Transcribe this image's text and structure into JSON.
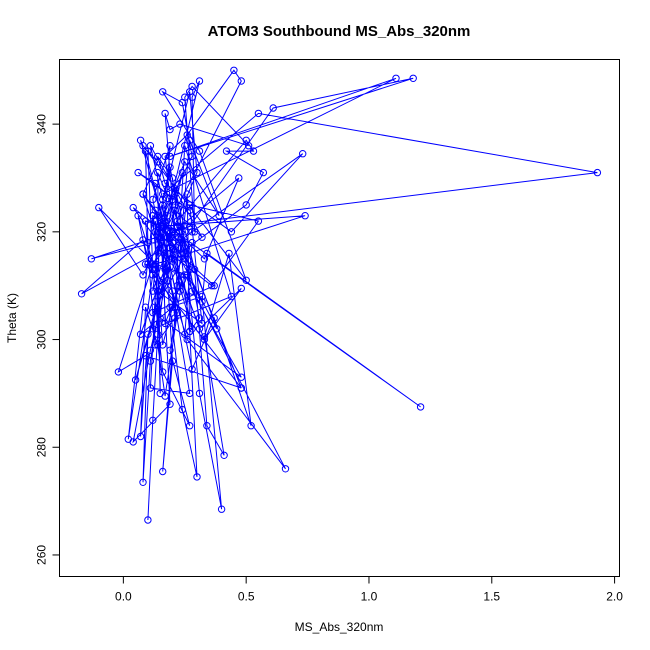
{
  "chart_data": {
    "type": "line",
    "title": "ATOM3 Southbound MS_Abs_320nm",
    "xlabel": "MS_Abs_320nm",
    "ylabel": "Theta (K)",
    "xlim": [
      -0.26,
      2.02
    ],
    "ylim": [
      256,
      352
    ],
    "xticks": [
      0.0,
      0.5,
      1.0,
      1.5,
      2.0
    ],
    "xtick_labels": [
      "0.0",
      "0.5",
      "1.0",
      "1.5",
      "2.0"
    ],
    "yticks": [
      260,
      280,
      300,
      320,
      340
    ],
    "ytick_labels": [
      "260",
      "280",
      "300",
      "320",
      "340"
    ],
    "grid": false,
    "color": "#0000ff",
    "series": [
      {
        "points": [
          [
            0.1,
            266.5
          ],
          [
            0.12,
            285
          ],
          [
            0.14,
            301
          ],
          [
            0.13,
            322
          ],
          [
            0.18,
            311
          ],
          [
            0.2,
            296
          ],
          [
            0.16,
            275.5
          ],
          [
            0.22,
            310
          ],
          [
            0.26,
            327
          ],
          [
            0.27,
            301.5
          ],
          [
            0.3,
            274.5
          ],
          [
            0.24,
            287
          ],
          [
            0.19,
            306
          ],
          [
            0.32,
            308
          ],
          [
            0.4,
            268.5
          ],
          [
            0.31,
            290
          ],
          [
            0.25,
            317
          ],
          [
            0.21,
            328
          ],
          [
            0.29,
            313
          ],
          [
            0.34,
            284
          ],
          [
            0.41,
            278.5
          ],
          [
            0.33,
            300.5
          ],
          [
            0.43,
            316
          ],
          [
            0.52,
            284
          ],
          [
            0.37,
            304
          ],
          [
            0.28,
            294.5
          ],
          [
            0.18,
            316
          ],
          [
            0.11,
            296
          ],
          [
            0.08,
            273.5
          ],
          [
            0.1,
            301
          ],
          [
            0.07,
            282
          ],
          [
            0.09,
            306
          ],
          [
            0.14,
            299
          ],
          [
            0.17,
            289.5
          ],
          [
            0.22,
            305
          ],
          [
            0.13,
            313
          ],
          [
            0.06,
            323
          ],
          [
            0.1,
            314
          ],
          [
            0.2,
            309
          ],
          [
            0.27,
            290
          ],
          [
            0.11,
            291
          ],
          [
            0.13,
            307
          ],
          [
            0.16,
            294
          ],
          [
            0.27,
            284
          ],
          [
            0.19,
            298
          ],
          [
            0.24,
            311
          ],
          [
            0.17,
            303
          ],
          [
            0.16,
            321
          ],
          [
            0.31,
            302
          ],
          [
            0.48,
            309.5
          ],
          [
            0.33,
            300
          ],
          [
            0.2,
            315
          ],
          [
            0.09,
            335
          ],
          [
            0.1,
            318
          ],
          [
            0.12,
            312
          ],
          [
            0.02,
            281.5
          ],
          [
            0.12,
            323
          ],
          [
            0.15,
            316.5
          ],
          [
            -0.17,
            308.5
          ],
          [
            0.08,
            318.5
          ],
          [
            0.14,
            309
          ],
          [
            0.15,
            290
          ],
          [
            0.14,
            331
          ],
          [
            0.23,
            321
          ],
          [
            0.38,
            302
          ],
          [
            0.13,
            324
          ],
          [
            0.19,
            313.5
          ],
          [
            0.11,
            298
          ],
          [
            0.04,
            281
          ],
          [
            0.19,
            288
          ],
          [
            0.15,
            322
          ],
          [
            0.25,
            301
          ],
          [
            0.28,
            318
          ],
          [
            0.12,
            305
          ],
          [
            0.37,
            310
          ],
          [
            0.25,
            315
          ],
          [
            0.18,
            319
          ],
          [
            0.47,
            330
          ],
          [
            0.33,
            315
          ],
          [
            0.17,
            322
          ],
          [
            0.19,
            336
          ],
          [
            0.12,
            326
          ],
          [
            0.21,
            306
          ],
          [
            0.25,
            336
          ],
          [
            0.44,
            308
          ],
          [
            0.12,
            302
          ],
          [
            0.15,
            319
          ],
          [
            0.2,
            318
          ],
          [
            0.27,
            313
          ],
          [
            0.22,
            321
          ],
          [
            0.48,
            291
          ],
          [
            0.09,
            314
          ],
          [
            0.25,
            312
          ],
          [
            0.66,
            276
          ],
          [
            0.26,
            300
          ],
          [
            0.08,
            327
          ],
          [
            0.2,
            320
          ],
          [
            0.12,
            309
          ],
          [
            0.16,
            325
          ],
          [
            0.21,
            304
          ],
          [
            0.13,
            299
          ],
          [
            0.09,
            322
          ],
          [
            0.25,
            320
          ],
          [
            0.14,
            309
          ],
          [
            0.32,
            303
          ],
          [
            0.27,
            325
          ],
          [
            0.55,
            322
          ],
          [
            0.36,
            310
          ],
          [
            0.19,
            316
          ],
          [
            0.28,
            302
          ],
          [
            0.11,
            336
          ],
          [
            0.32,
            319
          ],
          [
            0.21,
            324
          ],
          [
            0.28,
            309
          ],
          [
            0.48,
            293
          ],
          [
            0.15,
            304
          ],
          [
            0.17,
            313
          ],
          [
            0.18,
            320
          ],
          [
            0.2,
            326
          ],
          [
            0.13,
            329
          ],
          [
            0.06,
            331
          ],
          [
            0.27,
            324
          ],
          [
            0.16,
            326
          ],
          [
            0.19,
            332
          ],
          [
            0.31,
            304
          ],
          [
            0.27,
            301.5
          ],
          [
            0.23,
            318
          ],
          [
            0.15,
            322
          ],
          [
            0.25,
            333
          ],
          [
            0.39,
            323
          ],
          [
            0.27,
            337
          ],
          [
            0.23,
            316
          ],
          [
            0.5,
            325
          ],
          [
            0.57,
            331
          ],
          [
            0.42,
            335
          ],
          [
            0.53,
            335
          ],
          [
            0.5,
            337
          ],
          [
            0.22,
            322
          ],
          [
            0.2,
            330
          ],
          [
            0.14,
            334
          ],
          [
            0.17,
            329
          ],
          [
            0.44,
            320
          ],
          [
            0.73,
            334.5
          ],
          [
            0.28,
            320
          ],
          [
            0.19,
            317
          ],
          [
            0.07,
            337
          ],
          [
            0.08,
            336
          ],
          [
            0.5,
            311
          ],
          [
            0.31,
            335
          ],
          [
            0.16,
            346
          ],
          [
            0.24,
            344
          ],
          [
            0.28,
            334
          ],
          [
            0.13,
            320
          ],
          [
            0.27,
            346
          ],
          [
            0.3,
            331
          ],
          [
            0.18,
            318
          ],
          [
            0.24,
            331
          ],
          [
            0.18,
            323
          ],
          [
            0.12,
            313
          ],
          [
            0.1,
            335
          ],
          [
            0.14,
            333
          ],
          [
            0.08,
            327
          ],
          [
            0.14,
            323
          ],
          [
            0.16,
            317
          ],
          [
            0.04,
            324.5
          ],
          [
            0.19,
            319
          ],
          [
            0.23,
            309
          ],
          [
            0.17,
            342
          ],
          [
            0.19,
            339
          ],
          [
            0.23,
            340
          ],
          [
            0.51,
            336
          ],
          [
            0.28,
            347
          ],
          [
            0.25,
            345
          ],
          [
            0.29,
            320
          ],
          [
            0.28,
            345
          ],
          [
            0.31,
            348
          ],
          [
            0.13,
            314
          ],
          [
            -0.1,
            324.5
          ],
          [
            0.08,
            312
          ],
          [
            0.48,
            348
          ],
          [
            0.45,
            350
          ],
          [
            0.26,
            338
          ],
          [
            0.17,
            334
          ],
          [
            0.21,
            319
          ],
          [
            -0.13,
            315
          ],
          [
            0.27,
            321
          ],
          [
            0.61,
            343
          ],
          [
            1.18,
            348.5
          ],
          [
            0.19,
            334
          ],
          [
            1.11,
            348.5
          ],
          [
            0.16,
            327
          ],
          [
            0.55,
            342
          ],
          [
            1.93,
            331
          ],
          [
            0.16,
            321
          ],
          [
            0.74,
            323
          ],
          [
            0.13,
            314
          ],
          [
            0.26,
            312
          ],
          [
            0.32,
            307
          ],
          [
            0.34,
            316
          ],
          [
            1.21,
            287.5
          ],
          [
            0.12,
            323
          ],
          [
            0.16,
            299
          ],
          [
            0.2,
            306
          ],
          [
            0.07,
            301
          ],
          [
            0.2,
            317
          ],
          [
            0.05,
            292.5
          ],
          [
            0.23,
            320
          ],
          [
            0.12,
            314
          ],
          [
            -0.02,
            294
          ],
          [
            0.09,
            297
          ],
          [
            0.48,
            291
          ]
        ]
      }
    ]
  }
}
